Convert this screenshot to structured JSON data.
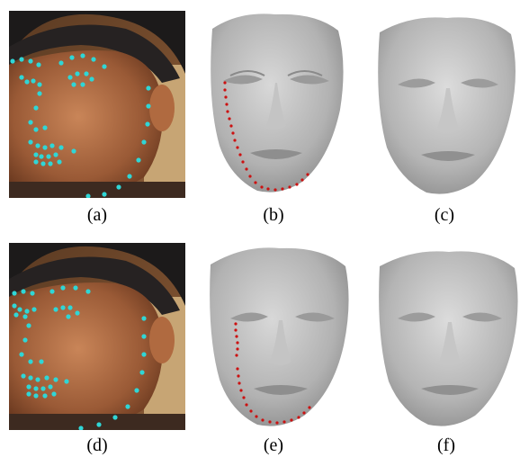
{
  "figure": {
    "panels": [
      {
        "id": "a",
        "caption": "(a)",
        "kind": "photo-landmarks",
        "marker_color": "#2fd6d6"
      },
      {
        "id": "b",
        "caption": "(b)",
        "kind": "mesh-with-contour",
        "marker_color": "#cc1111"
      },
      {
        "id": "c",
        "caption": "(c)",
        "kind": "mesh"
      },
      {
        "id": "d",
        "caption": "(d)",
        "kind": "photo-landmarks",
        "marker_color": "#2fd6d6"
      },
      {
        "id": "e",
        "caption": "(e)",
        "kind": "mesh-with-contour",
        "marker_color": "#cc1111"
      },
      {
        "id": "f",
        "caption": "(f)",
        "kind": "mesh"
      }
    ]
  }
}
